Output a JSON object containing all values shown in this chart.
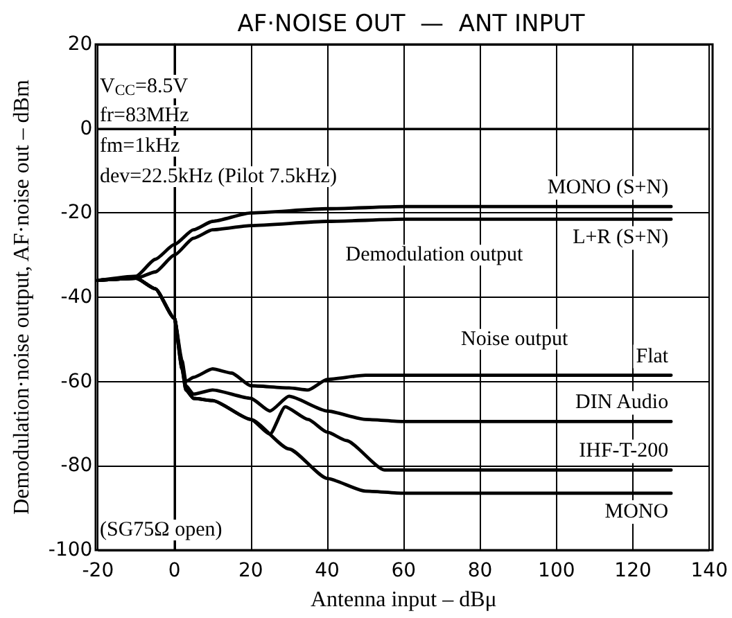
{
  "chart_data": {
    "type": "line",
    "title": "AF·NOISE OUT  —  ANT INPUT",
    "xlabel": "Antenna input – dBμ",
    "ylabel": "Demodulation·noise output, AF·noise out – dBm",
    "xlim": [
      -20,
      140
    ],
    "xticks": [
      -20,
      0,
      20,
      40,
      60,
      80,
      100,
      120,
      140
    ],
    "ylim": [
      -100,
      20
    ],
    "yticks": [
      -100,
      -80,
      -60,
      -40,
      -20,
      0,
      20
    ],
    "grid": true,
    "marker": "none",
    "line_style": "solid",
    "annotations": [
      "V$_{CC}$=8.5V",
      "fr=83MHz",
      "fm=1kHz",
      "dev=22.5kHz (Pilot 7.5kHz)",
      "(SG75Ω open)",
      "Demodulation output",
      "Noise output"
    ],
    "series": [
      {
        "name": "MONO (S+N)",
        "color": "#000000",
        "x": [
          -20,
          -10,
          -5,
          0,
          5,
          10,
          20,
          40,
          60,
          130
        ],
        "values": [
          -36,
          -35,
          -31,
          -27.5,
          -24,
          -22,
          -20,
          -19,
          -18.5,
          -18.5
        ]
      },
      {
        "name": "L+R (S+N)",
        "color": "#000000",
        "x": [
          -20,
          -10,
          -5,
          0,
          5,
          10,
          20,
          40,
          60,
          130
        ],
        "values": [
          -36,
          -35.5,
          -34,
          -30,
          -26,
          -24,
          -23,
          -22,
          -21.5,
          -21.5
        ]
      },
      {
        "name": "Flat",
        "color": "#000000",
        "x": [
          -20,
          -10,
          -5,
          0,
          2,
          3,
          5,
          10,
          15,
          20,
          30,
          35,
          40,
          50,
          130
        ],
        "values": [
          -36,
          -35.5,
          -38,
          -45,
          -55,
          -60,
          -59,
          -57,
          -58,
          -61,
          -61.5,
          -62,
          -59.5,
          -58.5,
          -58.5
        ]
      },
      {
        "name": "DIN Audio",
        "color": "#000000",
        "x": [
          -20,
          -10,
          -5,
          0,
          2,
          3,
          5,
          10,
          20,
          25,
          30,
          40,
          50,
          60,
          130
        ],
        "values": [
          -36,
          -35.5,
          -38,
          -45,
          -56,
          -61,
          -63,
          -62,
          -64,
          -67,
          -63.5,
          -67,
          -69,
          -69.5,
          -69.5
        ]
      },
      {
        "name": "IHF-T-200",
        "color": "#000000",
        "x": [
          -20,
          -10,
          -5,
          0,
          2,
          3,
          5,
          10,
          20,
          25,
          29,
          35,
          40,
          45,
          55,
          130
        ],
        "values": [
          -36,
          -35.5,
          -38,
          -45,
          -57,
          -62,
          -64,
          -64.5,
          -69,
          -72.5,
          -66,
          -69,
          -72,
          -74,
          -81,
          -81
        ]
      },
      {
        "name": "MONO",
        "color": "#000000",
        "x": [
          -20,
          -10,
          -5,
          0,
          2,
          3,
          5,
          10,
          20,
          30,
          40,
          50,
          60,
          130
        ],
        "values": [
          -36,
          -35.5,
          -38,
          -45,
          -57,
          -62,
          -64,
          -64.5,
          -69,
          -76,
          -83,
          -86,
          -86.5,
          -86.5
        ]
      }
    ]
  }
}
